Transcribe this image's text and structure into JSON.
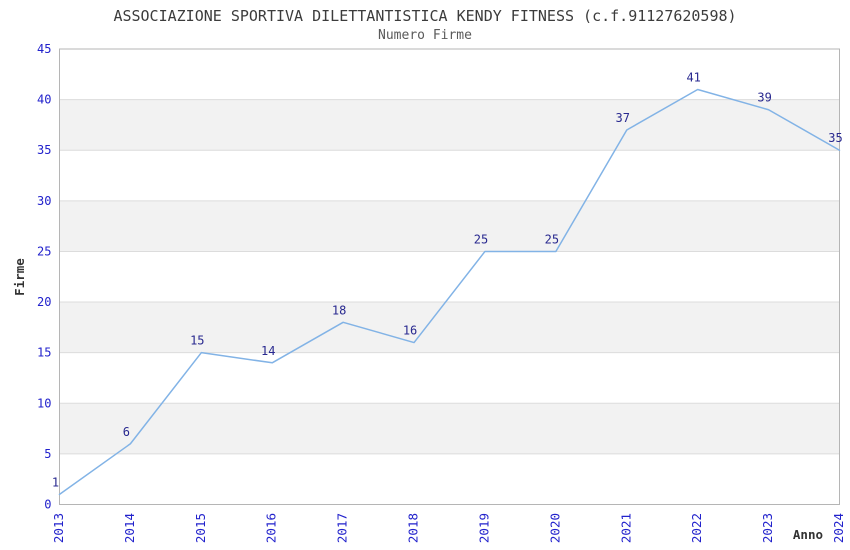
{
  "header": {
    "title": "ASSOCIAZIONE SPORTIVA DILETTANTISTICA KENDY FITNESS (c.f.91127620598)",
    "subtitle": "Numero Firme"
  },
  "chart_data": {
    "type": "line",
    "title": "ASSOCIAZIONE SPORTIVA DILETTANTISTICA KENDY FITNESS (c.f.91127620598)",
    "subtitle": "Numero Firme",
    "xlabel": "Anno",
    "ylabel": "Firme",
    "categories": [
      "2013",
      "2014",
      "2015",
      "2016",
      "2017",
      "2018",
      "2019",
      "2020",
      "2021",
      "2022",
      "2023",
      "2024"
    ],
    "values": [
      1,
      6,
      15,
      14,
      18,
      16,
      25,
      25,
      37,
      41,
      39,
      35
    ],
    "ylim": [
      0,
      45
    ],
    "ytick_step": 5,
    "yticks": [
      0,
      5,
      10,
      15,
      20,
      25,
      30,
      35,
      40,
      45
    ],
    "grid": "horizontal-bands-alternating",
    "legend_position": "none",
    "data_labels_visible": true,
    "colors": {
      "line": "#82b3e6",
      "tick_label": "#2222cc",
      "data_label": "#28288f",
      "band_fill": "#f2f2f2",
      "grid_line": "#dcdcdc",
      "plot_border": "#b5b5b5",
      "title_text": "#3c3c3c",
      "subtitle_text": "#5a5a5a",
      "axis_label_text": "#333333",
      "background": "#ffffff"
    }
  }
}
